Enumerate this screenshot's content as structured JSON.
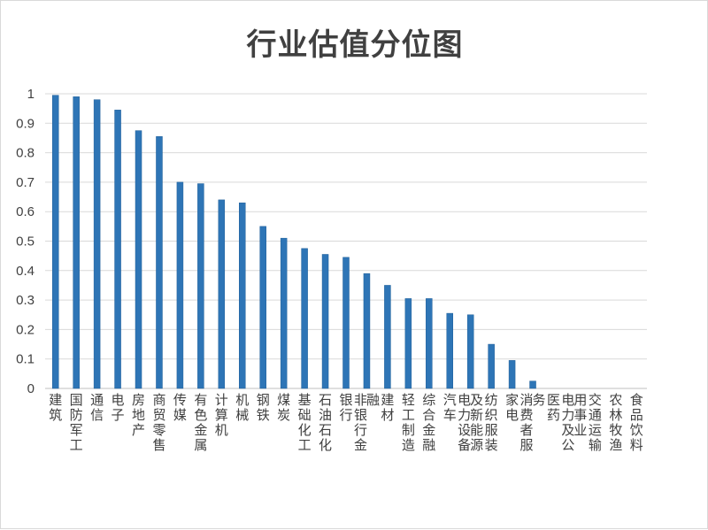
{
  "chart_data": {
    "type": "bar",
    "title": "行业估值分位图",
    "xlabel": "",
    "ylabel": "",
    "ylim": [
      0,
      1
    ],
    "yticks": [
      "0",
      "0.1",
      "0.2",
      "0.3",
      "0.4",
      "0.5",
      "0.6",
      "0.7",
      "0.8",
      "0.9",
      "1"
    ],
    "grid": true,
    "legend": "none",
    "bar_color": "#2e75b6",
    "categories": [
      "建筑",
      "国防军工",
      "通信",
      "电子",
      "房地产",
      "商贸零售",
      "传媒",
      "有色金属",
      "计算机",
      "机械",
      "钢铁",
      "煤炭",
      "基础化工",
      "石油石化",
      "银行",
      "非银行金融",
      "建材",
      "轻工制造",
      "综合金融",
      "汽车",
      "电力设备及新能源",
      "纺织服装",
      "家电",
      "消费者服务",
      "医药",
      "电力及公用事业",
      "交通运输",
      "农林牧渔",
      "食品饮料"
    ],
    "values": [
      0.995,
      0.99,
      0.98,
      0.945,
      0.875,
      0.855,
      0.7,
      0.695,
      0.64,
      0.63,
      0.55,
      0.51,
      0.475,
      0.455,
      0.445,
      0.39,
      0.35,
      0.305,
      0.305,
      0.255,
      0.25,
      0.15,
      0.095,
      0.025,
      0,
      0,
      0,
      0,
      0
    ]
  }
}
